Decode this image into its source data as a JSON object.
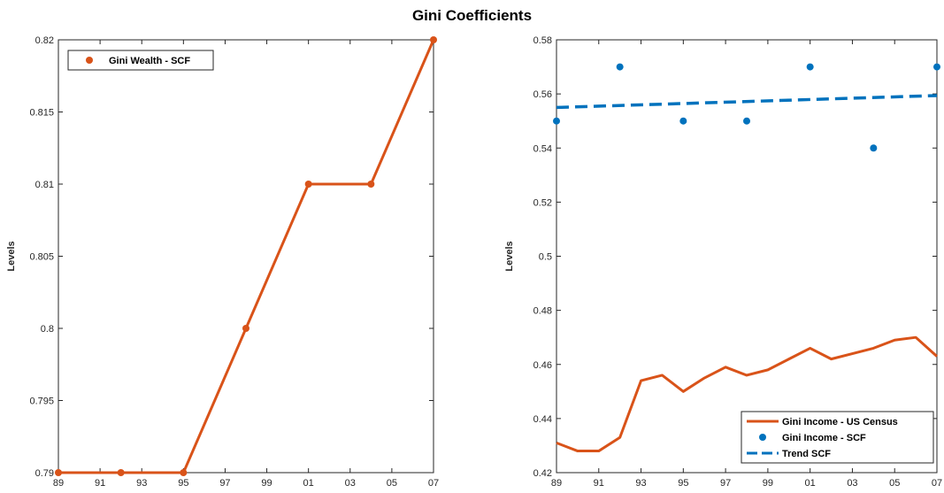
{
  "figure": {
    "title": "Gini Coefficients"
  },
  "colors": {
    "orange": "#d95319",
    "blue": "#0072bd",
    "axis": "#262626"
  },
  "chart_data": [
    {
      "type": "line",
      "title": "",
      "xlabel": "",
      "ylabel": "Levels",
      "xlim": [
        1989,
        2007
      ],
      "ylim": [
        0.79,
        0.82
      ],
      "x_ticks": [
        1989,
        1991,
        1993,
        1995,
        1997,
        1999,
        2001,
        2003,
        2005,
        2007
      ],
      "x_tick_labels": [
        "89",
        "91",
        "93",
        "95",
        "97",
        "99",
        "01",
        "03",
        "05",
        "07"
      ],
      "y_ticks": [
        0.79,
        0.795,
        0.8,
        0.805,
        0.81,
        0.815,
        0.82
      ],
      "y_tick_labels": [
        "0.79",
        "0.795",
        "0.8",
        "0.805",
        "0.81",
        "0.815",
        "0.82"
      ],
      "legend_position": "top-left",
      "series": [
        {
          "name": "Gini Wealth - SCF",
          "style": "line-markers",
          "color": "#d95319",
          "x": [
            1989,
            1992,
            1995,
            1998,
            2001,
            2004,
            2007
          ],
          "y": [
            0.79,
            0.79,
            0.79,
            0.8,
            0.81,
            0.81,
            0.82
          ]
        }
      ]
    },
    {
      "type": "line",
      "title": "",
      "xlabel": "",
      "ylabel": "Levels",
      "xlim": [
        1989,
        2007
      ],
      "ylim": [
        0.42,
        0.58
      ],
      "x_ticks": [
        1989,
        1991,
        1993,
        1995,
        1997,
        1999,
        2001,
        2003,
        2005,
        2007
      ],
      "x_tick_labels": [
        "89",
        "91",
        "93",
        "95",
        "97",
        "99",
        "01",
        "03",
        "05",
        "07"
      ],
      "y_ticks": [
        0.42,
        0.44,
        0.46,
        0.48,
        0.5,
        0.52,
        0.54,
        0.56,
        0.58
      ],
      "y_tick_labels": [
        "0.42",
        "0.44",
        "0.46",
        "0.48",
        "0.5",
        "0.52",
        "0.54",
        "0.56",
        "0.58"
      ],
      "legend_position": "bottom-right",
      "series": [
        {
          "name": "Gini Income - US Census",
          "style": "line",
          "color": "#d95319",
          "x": [
            1989,
            1990,
            1991,
            1992,
            1993,
            1994,
            1995,
            1996,
            1997,
            1998,
            1999,
            2000,
            2001,
            2002,
            2003,
            2004,
            2005,
            2006,
            2007
          ],
          "y": [
            0.431,
            0.428,
            0.428,
            0.433,
            0.454,
            0.456,
            0.45,
            0.455,
            0.459,
            0.456,
            0.458,
            0.462,
            0.466,
            0.462,
            0.464,
            0.466,
            0.469,
            0.47,
            0.463
          ]
        },
        {
          "name": "Gini Income - SCF",
          "style": "markers",
          "color": "#0072bd",
          "x": [
            1989,
            1992,
            1995,
            1998,
            2001,
            2004,
            2007
          ],
          "y": [
            0.55,
            0.57,
            0.55,
            0.55,
            0.57,
            0.54,
            0.57
          ]
        },
        {
          "name": "Trend SCF",
          "style": "dashed",
          "color": "#0072bd",
          "x": [
            1989,
            2007
          ],
          "y": [
            0.555,
            0.5594
          ]
        }
      ]
    }
  ]
}
